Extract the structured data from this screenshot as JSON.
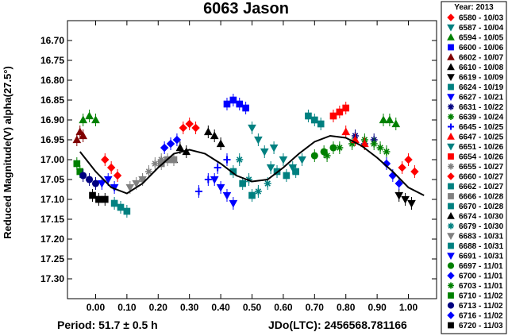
{
  "chart_data": {
    "type": "scatter",
    "title": "6063 Jason",
    "ylabel": "Reduced Magnitude(V) alpha(27.5°)",
    "xlim": [
      -0.09,
      1.09
    ],
    "ylim": [
      17.35,
      16.65
    ],
    "y_inverted": true,
    "x_ticks": [
      "0.00",
      "0.10",
      "0.20",
      "0.30",
      "0.40",
      "0.50",
      "0.60",
      "0.70",
      "0.80",
      "0.90",
      "1.00"
    ],
    "y_ticks": [
      "16.70",
      "16.75",
      "16.80",
      "16.85",
      "16.90",
      "16.95",
      "17.00",
      "17.05",
      "17.10",
      "17.15",
      "17.20",
      "17.25",
      "17.30"
    ],
    "period_text": "Period: 51.7 ± 0.5 h",
    "jdo_text": "JDo(LTC): 2456568.781166",
    "legend_title": "Year: 2013",
    "legend_position": "right",
    "fit_curve": {
      "label": "Fourier fit",
      "x": [
        -0.05,
        0.0,
        0.05,
        0.1,
        0.15,
        0.2,
        0.25,
        0.3,
        0.35,
        0.4,
        0.45,
        0.5,
        0.55,
        0.6,
        0.65,
        0.7,
        0.75,
        0.8,
        0.85,
        0.9,
        0.95,
        1.0,
        1.05
      ],
      "y": [
        16.98,
        17.03,
        17.07,
        17.085,
        17.06,
        17.02,
        16.985,
        16.975,
        16.985,
        17.01,
        17.04,
        17.055,
        17.05,
        17.02,
        16.985,
        16.955,
        16.94,
        16.945,
        16.965,
        16.995,
        17.03,
        17.07,
        17.09
      ]
    },
    "series": [
      {
        "name": "6580 - 10/03",
        "color": "#ff0000",
        "marker": "diamond",
        "x": [
          0.03,
          0.05,
          0.07,
          0.98,
          1.0,
          1.02
        ],
        "y": [
          17.0,
          17.02,
          17.04,
          17.02,
          17.0,
          17.03
        ]
      },
      {
        "name": "6587 - 10/04",
        "color": "#008080",
        "marker": "tri-down",
        "x": [
          0.57,
          0.6,
          0.63,
          0.66
        ],
        "y": [
          16.97,
          17.0,
          17.02,
          17.0
        ]
      },
      {
        "name": "6594 - 10/05",
        "color": "#008000",
        "marker": "tri-up",
        "x": [
          -0.04,
          -0.02,
          0.0,
          0.92,
          0.94,
          0.96
        ],
        "y": [
          16.9,
          16.89,
          16.9,
          16.9,
          16.9,
          16.91
        ]
      },
      {
        "name": "6600 - 10/06",
        "color": "#0000ff",
        "marker": "square",
        "x": [
          0.42,
          0.44,
          0.46,
          0.48
        ],
        "y": [
          16.86,
          16.85,
          16.86,
          16.87
        ]
      },
      {
        "name": "6602 - 10/07",
        "color": "#800000",
        "marker": "tri-up",
        "x": [
          -0.06,
          -0.05,
          -0.04
        ],
        "y": [
          16.95,
          16.93,
          16.94
        ]
      },
      {
        "name": "6610 - 10/08",
        "color": "#000000",
        "marker": "tri-up",
        "x": [
          0.25,
          0.27,
          0.29
        ],
        "y": [
          17.0,
          16.97,
          16.98
        ]
      },
      {
        "name": "6619 - 10/09",
        "color": "#000000",
        "marker": "tri-down",
        "x": [
          0.97,
          0.99,
          1.01
        ],
        "y": [
          17.09,
          17.1,
          17.11
        ]
      },
      {
        "name": "6624 - 10/19",
        "color": "#008080",
        "marker": "square",
        "x": [
          0.06,
          0.08,
          0.1
        ],
        "y": [
          17.11,
          17.12,
          17.13
        ]
      },
      {
        "name": "6627 - 10/21",
        "color": "#0000ff",
        "marker": "tri-down",
        "x": [
          0.38,
          0.4,
          0.42,
          0.44
        ],
        "y": [
          17.05,
          17.07,
          17.09,
          17.11
        ]
      },
      {
        "name": "6631 - 10/22",
        "color": "#000080",
        "marker": "star",
        "x": [
          0.83,
          0.86,
          0.89
        ],
        "y": [
          16.94,
          16.96,
          16.95
        ]
      },
      {
        "name": "6639 - 10/24",
        "color": "#008000",
        "marker": "star",
        "x": [
          0.74,
          0.78,
          0.82,
          0.86
        ],
        "y": [
          16.99,
          16.97,
          16.96,
          16.95
        ]
      },
      {
        "name": "6645 - 10/25",
        "color": "#0000ff",
        "marker": "plus",
        "x": [
          0.33,
          0.36,
          0.39,
          0.42
        ],
        "y": [
          17.08,
          17.05,
          17.02,
          17.0
        ]
      },
      {
        "name": "6647 - 10/25",
        "color": "#ff0000",
        "marker": "tri-up",
        "x": [
          0.8,
          0.83,
          0.86
        ],
        "y": [
          16.93,
          16.95,
          16.96
        ]
      },
      {
        "name": "6651 - 10/26",
        "color": "#008080",
        "marker": "tri-down",
        "x": [
          0.5,
          0.52,
          0.54,
          0.56
        ],
        "y": [
          16.92,
          16.95,
          16.98,
          17.02
        ]
      },
      {
        "name": "6654 - 10/26",
        "color": "#ff0000",
        "marker": "square",
        "x": [
          0.76,
          0.78,
          0.8
        ],
        "y": [
          16.89,
          16.88,
          16.87
        ]
      },
      {
        "name": "6655 - 10/27",
        "color": "#808080",
        "marker": "star",
        "x": [
          0.15,
          0.17,
          0.19,
          0.21
        ],
        "y": [
          17.05,
          17.03,
          17.01,
          17.0
        ]
      },
      {
        "name": "6660 - 10/27",
        "color": "#ff0000",
        "marker": "diamond",
        "x": [
          0.28,
          0.3,
          0.32
        ],
        "y": [
          16.92,
          16.91,
          16.92
        ]
      },
      {
        "name": "6662 - 10/27",
        "color": "#008080",
        "marker": "square",
        "x": [
          0.68,
          0.7,
          0.72
        ],
        "y": [
          16.89,
          16.9,
          16.91
        ]
      },
      {
        "name": "6666 - 10/28",
        "color": "#808080",
        "marker": "square",
        "x": [
          0.21,
          0.23,
          0.25
        ],
        "y": [
          17.01,
          17.0,
          17.0
        ]
      },
      {
        "name": "6670 - 10/28",
        "color": "#008080",
        "marker": "square",
        "x": [
          0.58,
          0.61,
          0.64
        ],
        "y": [
          17.03,
          17.04,
          17.03
        ]
      },
      {
        "name": "6674 - 10/30",
        "color": "#000000",
        "marker": "tri-up",
        "x": [
          0.36,
          0.38,
          0.4
        ],
        "y": [
          16.93,
          16.94,
          16.96
        ]
      },
      {
        "name": "6679 - 10/30",
        "color": "#008080",
        "marker": "star",
        "x": [
          0.46,
          0.49,
          0.52,
          0.55
        ],
        "y": [
          17.0,
          17.05,
          17.08,
          17.06
        ]
      },
      {
        "name": "6683 - 10/31",
        "color": "#808080",
        "marker": "tri-down",
        "x": [
          0.11,
          0.13,
          0.15
        ],
        "y": [
          17.07,
          17.06,
          17.05
        ]
      },
      {
        "name": "6688 - 10/31",
        "color": "#008080",
        "marker": "square",
        "x": [
          0.44,
          0.47,
          0.5
        ],
        "y": [
          17.03,
          17.06,
          17.09
        ]
      },
      {
        "name": "6691 - 10/31",
        "color": "#0000ff",
        "marker": "tri-down",
        "x": [
          0.02,
          0.04,
          0.06
        ],
        "y": [
          17.06,
          17.05,
          17.07
        ]
      },
      {
        "name": "6697 - 11/01",
        "color": "#008000",
        "marker": "circle",
        "x": [
          0.7,
          0.73,
          0.76
        ],
        "y": [
          16.99,
          16.98,
          16.97
        ]
      },
      {
        "name": "6700 - 11/01",
        "color": "#0000ff",
        "marker": "diamond",
        "x": [
          0.22,
          0.24,
          0.26
        ],
        "y": [
          16.97,
          16.96,
          16.95
        ]
      },
      {
        "name": "6703 - 11/01",
        "color": "#008000",
        "marker": "star",
        "x": [
          0.89,
          0.91,
          0.93
        ],
        "y": [
          16.96,
          16.97,
          16.98
        ]
      },
      {
        "name": "6710 - 11/02",
        "color": "#008000",
        "marker": "square",
        "x": [
          -0.06,
          -0.05
        ],
        "y": [
          17.01,
          17.03
        ]
      },
      {
        "name": "6713 - 11/02",
        "color": "#000080",
        "marker": "circle",
        "x": [
          -0.04,
          -0.02,
          0.0
        ],
        "y": [
          17.04,
          17.05,
          17.06
        ]
      },
      {
        "name": "6716 - 11/02",
        "color": "#0000ff",
        "marker": "diamond",
        "x": [
          0.93,
          0.95,
          0.97
        ],
        "y": [
          17.01,
          17.04,
          17.06
        ]
      },
      {
        "name": "6720 - 11/03",
        "color": "#000000",
        "marker": "square",
        "x": [
          -0.01,
          0.01,
          0.03
        ],
        "y": [
          17.09,
          17.1,
          17.1
        ]
      }
    ]
  }
}
